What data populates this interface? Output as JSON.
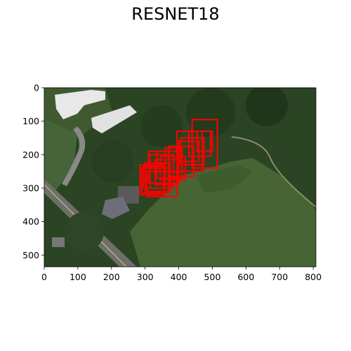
{
  "title": "RESNET18",
  "image": {
    "width": 808,
    "height": 535,
    "description_icon": "aerial-satellite-photo"
  },
  "axes": {
    "x_ticks": [
      0,
      100,
      200,
      300,
      400,
      500,
      600,
      700,
      800
    ],
    "y_ticks": [
      0,
      100,
      200,
      300,
      400,
      500
    ],
    "xlim": [
      0,
      808
    ],
    "ylim": [
      535,
      0
    ]
  },
  "colors": {
    "box": "#ff0000",
    "grass_dark": "#2f4a24",
    "grass_field": "#4a6a36",
    "trees": "#223a1c",
    "road": "#6e6e6a",
    "roof": "#e6e6e6"
  },
  "boxes": [
    [
      440,
      95,
      515,
      240
    ],
    [
      430,
      130,
      495,
      205
    ],
    [
      455,
      130,
      500,
      190
    ],
    [
      405,
      150,
      475,
      230
    ],
    [
      400,
      160,
      460,
      220
    ],
    [
      395,
      130,
      470,
      250
    ],
    [
      370,
      175,
      445,
      265
    ],
    [
      360,
      180,
      410,
      250
    ],
    [
      335,
      190,
      410,
      270
    ],
    [
      310,
      190,
      395,
      285
    ],
    [
      315,
      200,
      385,
      300
    ],
    [
      300,
      225,
      375,
      310
    ],
    [
      285,
      230,
      355,
      320
    ],
    [
      290,
      240,
      370,
      315
    ],
    [
      305,
      250,
      395,
      325
    ],
    [
      330,
      215,
      400,
      290
    ],
    [
      345,
      205,
      420,
      275
    ],
    [
      295,
      235,
      360,
      300
    ]
  ]
}
